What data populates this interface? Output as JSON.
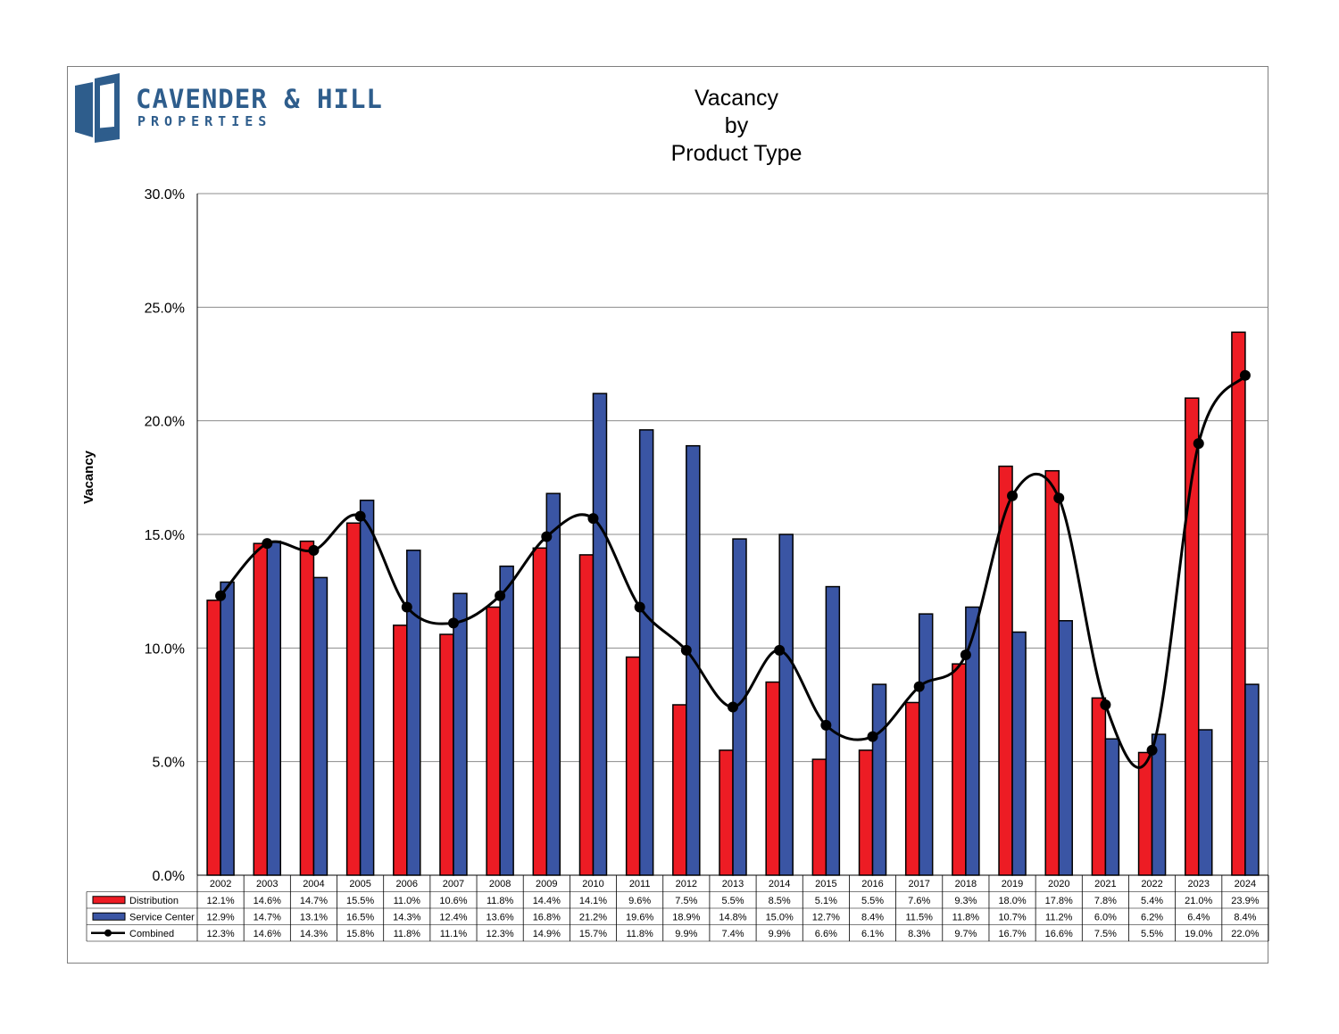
{
  "logo": {
    "line1": "CAVENDER & HILL",
    "line2": "PROPERTIES",
    "color": "#2e5d8c"
  },
  "chart_data": {
    "type": "bar",
    "title_lines": [
      "Vacancy",
      "by",
      "Product Type"
    ],
    "ylabel": "Vacancy",
    "ylim": [
      0,
      30
    ],
    "ytick_labels": [
      "0.0%",
      "5.0%",
      "10.0%",
      "15.0%",
      "20.0%",
      "25.0%",
      "30.0%"
    ],
    "grid": true,
    "legend_placement": "data-table-left",
    "categories": [
      "2002",
      "2003",
      "2004",
      "2005",
      "2006",
      "2007",
      "2008",
      "2009",
      "2010",
      "2011",
      "2012",
      "2013",
      "2014",
      "2015",
      "2016",
      "2017",
      "2018",
      "2019",
      "2020",
      "2021",
      "2022",
      "2023",
      "2024"
    ],
    "series": [
      {
        "name": "Distribution",
        "kind": "bar",
        "color": "#ed1c24",
        "values": [
          12.1,
          14.6,
          14.7,
          15.5,
          11.0,
          10.6,
          11.8,
          14.4,
          14.1,
          9.6,
          7.5,
          5.5,
          8.5,
          5.1,
          5.5,
          7.6,
          9.3,
          18.0,
          17.8,
          7.8,
          5.4,
          21.0,
          23.9
        ],
        "labels": [
          "12.1%",
          "14.6%",
          "14.7%",
          "15.5%",
          "11.0%",
          "10.6%",
          "11.8%",
          "14.4%",
          "14.1%",
          "9.6%",
          "7.5%",
          "5.5%",
          "8.5%",
          "5.1%",
          "5.5%",
          "7.6%",
          "9.3%",
          "18.0%",
          "17.8%",
          "7.8%",
          "5.4%",
          "21.0%",
          "23.9%"
        ]
      },
      {
        "name": "Service Center",
        "kind": "bar",
        "color": "#3a55a4",
        "values": [
          12.9,
          14.7,
          13.1,
          16.5,
          14.3,
          12.4,
          13.6,
          16.8,
          21.2,
          19.6,
          18.9,
          14.8,
          15.0,
          12.7,
          8.4,
          11.5,
          11.8,
          10.7,
          11.2,
          6.0,
          6.2,
          6.4,
          8.4
        ],
        "labels": [
          "12.9%",
          "14.7%",
          "13.1%",
          "16.5%",
          "14.3%",
          "12.4%",
          "13.6%",
          "16.8%",
          "21.2%",
          "19.6%",
          "18.9%",
          "14.8%",
          "15.0%",
          "12.7%",
          "8.4%",
          "11.5%",
          "11.8%",
          "10.7%",
          "11.2%",
          "6.0%",
          "6.2%",
          "6.4%",
          "8.4%"
        ]
      },
      {
        "name": "Combined",
        "kind": "line",
        "color": "#000000",
        "values": [
          12.3,
          14.6,
          14.3,
          15.8,
          11.8,
          11.1,
          12.3,
          14.9,
          15.7,
          11.8,
          9.9,
          7.4,
          9.9,
          6.6,
          6.1,
          8.3,
          9.7,
          16.7,
          16.6,
          7.5,
          5.5,
          19.0,
          22.0
        ],
        "labels": [
          "12.3%",
          "14.6%",
          "14.3%",
          "15.8%",
          "11.8%",
          "11.1%",
          "12.3%",
          "14.9%",
          "15.7%",
          "11.8%",
          "9.9%",
          "7.4%",
          "9.9%",
          "6.6%",
          "6.1%",
          "8.3%",
          "9.7%",
          "16.7%",
          "16.6%",
          "7.5%",
          "5.5%",
          "19.0%",
          "22.0%"
        ]
      }
    ]
  }
}
